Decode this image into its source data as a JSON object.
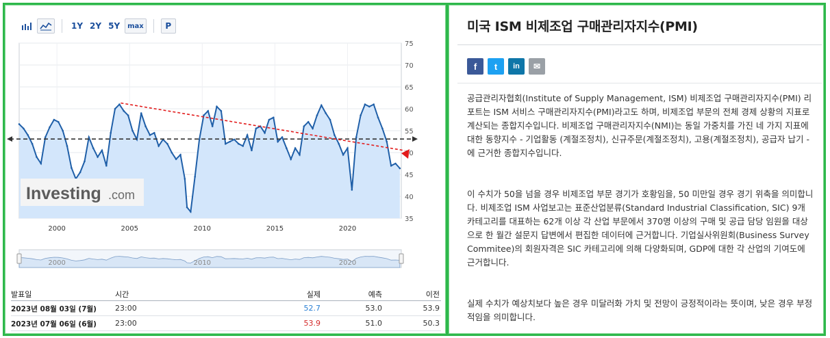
{
  "toolbar": {
    "bar_chart_icon": "bar-chart-icon",
    "line_chart_icon": "line-chart-icon",
    "ranges": [
      "1Y",
      "2Y",
      "5Y",
      "max"
    ],
    "p_label": "P"
  },
  "chart_data": {
    "type": "line",
    "watermark": "Investing",
    "watermark_suffix": ".com",
    "x_ticks": [
      "2000",
      "2005",
      "2010",
      "2015",
      "2020"
    ],
    "y_ticks": [
      35,
      40,
      45,
      50,
      55,
      60,
      65,
      70,
      75
    ],
    "xlim": [
      1997.4,
      2023.7
    ],
    "ylim": [
      35,
      75
    ],
    "reference_level": 53.1,
    "series": [
      {
        "x": [
          1997.4,
          1997.7,
          1998.0,
          1998.3,
          1998.6,
          1998.9,
          1999.2,
          1999.5,
          1999.8,
          2000.1,
          2000.4,
          2000.7,
          2001.0,
          2001.3,
          2001.6,
          2001.9,
          2002.2,
          2002.5,
          2002.8,
          2003.1,
          2003.4,
          2003.7,
          2004.0,
          2004.3,
          2004.6,
          2004.9,
          2005.2,
          2005.5,
          2005.8,
          2006.1,
          2006.4,
          2006.7,
          2007.0,
          2007.3,
          2007.6,
          2007.9,
          2008.2,
          2008.5,
          2008.8,
          2008.95,
          2009.2,
          2009.5,
          2009.8,
          2010.1,
          2010.4,
          2010.7,
          2011.0,
          2011.3,
          2011.6,
          2011.9,
          2012.2,
          2012.5,
          2012.8,
          2013.1,
          2013.4,
          2013.7,
          2014.0,
          2014.3,
          2014.6,
          2014.9,
          2015.2,
          2015.5,
          2015.8,
          2016.1,
          2016.4,
          2016.7,
          2017.0,
          2017.3,
          2017.6,
          2017.9,
          2018.2,
          2018.5,
          2018.8,
          2019.1,
          2019.4,
          2019.7,
          2020.0,
          2020.3,
          2020.6,
          2020.9,
          2021.2,
          2021.5,
          2021.8,
          2022.1,
          2022.4,
          2022.7,
          2023.0,
          2023.3,
          2023.6
        ],
        "y": [
          56.5,
          55.5,
          54.0,
          52.0,
          49.0,
          47.5,
          53.5,
          55.8,
          57.5,
          57.0,
          55.0,
          51.5,
          46.5,
          44.0,
          45.5,
          48.0,
          53.5,
          51.0,
          49.0,
          50.5,
          47.0,
          54.5,
          60.0,
          61.0,
          59.5,
          58.5,
          55.0,
          53.0,
          59.0,
          56.0,
          54.0,
          54.5,
          51.5,
          53.0,
          52.0,
          50.0,
          48.5,
          49.5,
          44.0,
          37.5,
          36.5,
          44.5,
          53.0,
          58.5,
          59.5,
          56.0,
          60.5,
          59.5,
          52.0,
          52.5,
          53.0,
          52.0,
          51.5,
          54.0,
          50.5,
          55.5,
          56.0,
          54.5,
          57.5,
          58.0,
          52.5,
          53.5,
          51.0,
          48.5,
          51.0,
          49.5,
          56.0,
          57.0,
          55.5,
          58.5,
          60.8,
          59.0,
          57.5,
          54.0,
          52.0,
          49.5,
          51.0,
          41.5,
          53.5,
          58.5,
          61.0,
          60.5,
          61.0,
          58.0,
          55.5,
          52.5,
          47.0,
          47.5,
          46.4
        ]
      }
    ]
  },
  "navigator": {
    "labels": [
      "2000",
      "2010",
      "2020"
    ]
  },
  "table": {
    "headers": [
      "발표일",
      "시간",
      "실제",
      "예측",
      "이전"
    ],
    "rows": [
      {
        "date": "2023년 08월 03일 (7월)",
        "time": "23:00",
        "actual": "52.7",
        "forecast": "53.0",
        "previous": "53.9",
        "actual_color": "#2a7fd4"
      },
      {
        "date": "2023년 07월 06일 (6월)",
        "time": "23:00",
        "actual": "53.9",
        "forecast": "51.0",
        "previous": "50.3",
        "actual_color": "#d42a2a"
      }
    ]
  },
  "panel": {
    "title": "미국 ISM 비제조업 구매관리자지수(PMI)",
    "share": {
      "facebook": "f",
      "twitter": "t",
      "linkedin": "in",
      "email": "✉"
    },
    "paragraphs": [
      "공급관리자협회(Institute of Supply Management, ISM) 비제조업 구매관리자지수(PMI) 리포트는 ISM 서비스 구매관리자지수(PMI)라고도 하며, 비제조업 부문의 전체 경제 상황의 지표로 계산되는 종합지수입니다. 비제조업 구매관리자지수(NMI)는 동일 가중치를 가진 네 가지 지표에 대한 동향지수 - 기업활동 (계절조정치), 신규주문(계절조정치), 고용(계절조정치), 공급자 납기 - 에 근거한 종합지수입니다.",
      "이 수치가 50을 넘을 경우 비제조업 부문 경기가 호황임을, 50 미만일 경우 경기 위축을 의미합니다. 비제조업 ISM 사업보고는 표준산업분류(Standard Industrial Classification, SIC) 9개 카테고리를 대표하는 62개 이상 각 산업 부문에서 370명 이상의 구매 및 공급 담당 임원을 대상으로 한 월간 설문지 답변에서 편집한 데이터에 근거합니다. 기업실사위원회(Business Survey Commitee)의 회원자격은 SIC 카테고리에 의해 다양화되며, GDP에 대한 각 산업의 기여도에 근거합니다.",
      "실제 수치가 예상치보다 높은 경우 미달러화 가치 및 전망이 긍정적이라는 뜻이며, 낮은 경우 부정적임을 의미합니다."
    ]
  }
}
